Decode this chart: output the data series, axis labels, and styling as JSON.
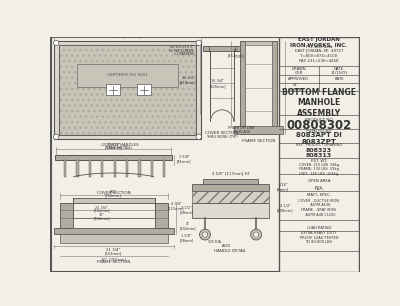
{
  "bg_color": "#f2efe6",
  "border_color": "#555555",
  "line_color": "#555555",
  "dark_fill": "#b0aca0",
  "mid_fill": "#c8c4b8",
  "light_fill": "#dedad0",
  "company_name": "EAST JORDAN\nIRON WORKS, INC.",
  "company_addr": "P.O. BOX 439\nEAST JORDAN, MI  49727\nT=800=874=4100\nFAX 231=536=4458",
  "drawn_label": "DRAWN",
  "drawn_by": "GER",
  "date_label": "DATE",
  "date_val": "11/15/01",
  "approved_label": "APPROVED",
  "rate_label": "RATE",
  "title": "BOTTOM FLANGE\nMANHOLE\nASSEMBLY",
  "product_no_label": "PRODUCT NO.",
  "product_no": "00808302",
  "catalog_label": "CATALOG NO.",
  "catalog_no": "8083APT DI\n8083ZPT",
  "ref_label": "REF.  PRODUCT DRAWING",
  "ref_drawing": "808323\n808313",
  "est_wt_label": "EST. WT.",
  "est_wt": "COVER: 215 LBS  98kg\nFRAME: 130 LBS  59kg\nUNIT:  345 LBS  156kg",
  "open_area_label": "OPEN AREA",
  "open_area": "N/A",
  "matl_spec_label": "MAT'L SPEC.",
  "matl_spec_cover": "COVER - DUCTILE IRON\n   ASTM A536",
  "matl_spec_frame": "FRAME - GRAY IRON\n   ASTM A48 CL250",
  "load_rating": "LOAD RATING\nEXTRA HEAVY DUTY\nPROOF LOAD TESTED\nTO 80,000 LBS"
}
